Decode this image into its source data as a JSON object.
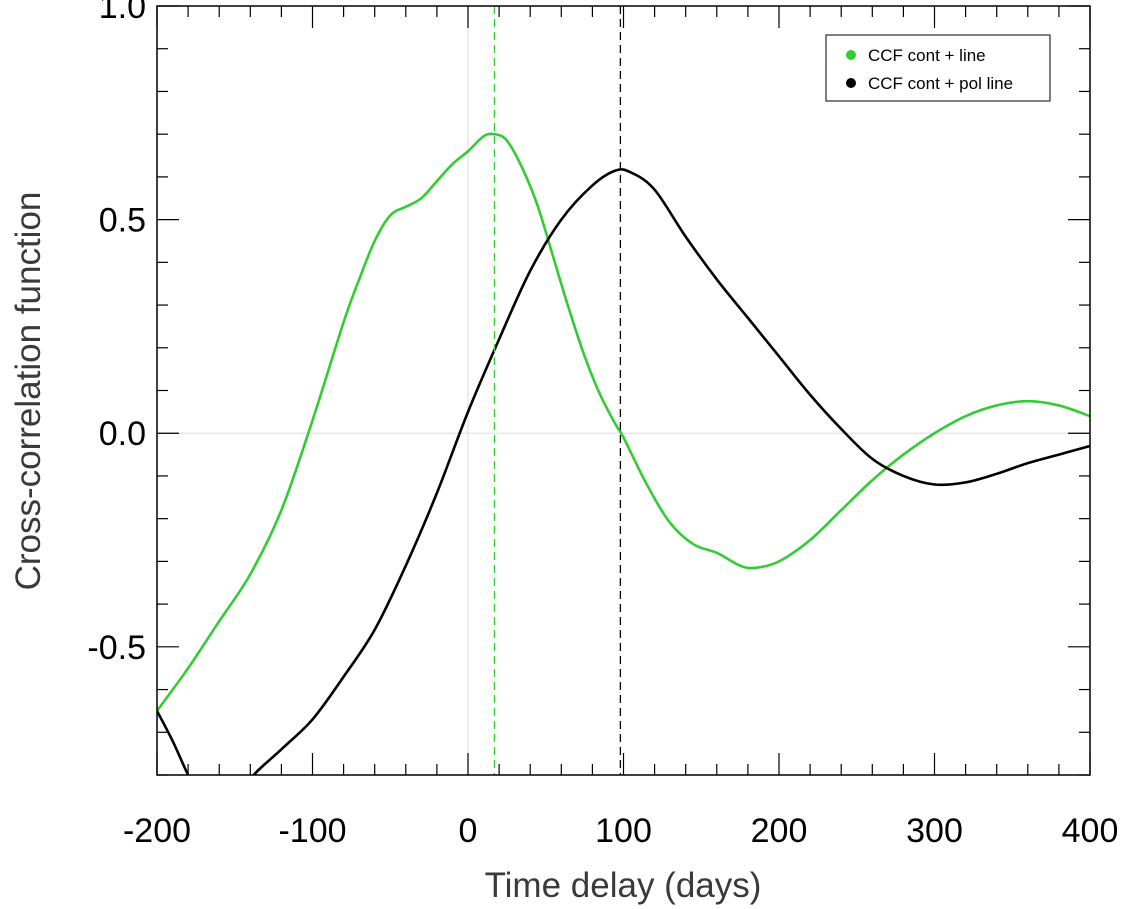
{
  "chart_data": {
    "type": "line",
    "xlabel": "Time delay (days)",
    "ylabel": "Cross-correlation function",
    "xlim": [
      -200,
      400
    ],
    "ylim": [
      -0.8,
      1.0
    ],
    "x_ticks": [
      -200,
      -100,
      0,
      100,
      200,
      300,
      400
    ],
    "y_ticks": [
      -0.5,
      0.0,
      0.5,
      1.0
    ],
    "x_tick_labels": [
      "-200",
      "-100",
      "0",
      "100",
      "200",
      "300",
      "400"
    ],
    "y_tick_labels": [
      "-0.5",
      "0.0",
      "0.5",
      "1.0"
    ],
    "grid": false,
    "reference_lines": {
      "x": 0,
      "y": 0,
      "color": "#e3e3e3"
    },
    "legend": {
      "position": "top-right"
    },
    "series": [
      {
        "name": "CCF cont + line",
        "color": "#33cc33",
        "peak_x": 17,
        "points": [
          [
            -200,
            -0.65
          ],
          [
            -180,
            -0.55
          ],
          [
            -160,
            -0.44
          ],
          [
            -140,
            -0.33
          ],
          [
            -120,
            -0.18
          ],
          [
            -100,
            0.03
          ],
          [
            -80,
            0.26
          ],
          [
            -70,
            0.36
          ],
          [
            -60,
            0.45
          ],
          [
            -50,
            0.51
          ],
          [
            -40,
            0.53
          ],
          [
            -30,
            0.55
          ],
          [
            -20,
            0.59
          ],
          [
            -10,
            0.63
          ],
          [
            0,
            0.66
          ],
          [
            10,
            0.695
          ],
          [
            17,
            0.7
          ],
          [
            25,
            0.685
          ],
          [
            35,
            0.62
          ],
          [
            45,
            0.53
          ],
          [
            55,
            0.41
          ],
          [
            65,
            0.29
          ],
          [
            75,
            0.18
          ],
          [
            85,
            0.09
          ],
          [
            95,
            0.02
          ],
          [
            100,
            -0.01
          ],
          [
            115,
            -0.12
          ],
          [
            130,
            -0.21
          ],
          [
            145,
            -0.26
          ],
          [
            160,
            -0.28
          ],
          [
            175,
            -0.31
          ],
          [
            185,
            -0.315
          ],
          [
            200,
            -0.3
          ],
          [
            220,
            -0.25
          ],
          [
            240,
            -0.18
          ],
          [
            260,
            -0.11
          ],
          [
            280,
            -0.05
          ],
          [
            300,
            0.0
          ],
          [
            320,
            0.04
          ],
          [
            340,
            0.065
          ],
          [
            360,
            0.075
          ],
          [
            380,
            0.065
          ],
          [
            400,
            0.04
          ]
        ]
      },
      {
        "name": "CCF cont + pol line",
        "color": "#000000",
        "peak_x": 98,
        "points": [
          [
            -200,
            -0.65
          ],
          [
            -190,
            -0.72
          ],
          [
            -180,
            -0.8
          ],
          [
            -170,
            -0.87
          ],
          [
            -160,
            -0.9
          ],
          [
            -150,
            -0.89
          ],
          [
            -140,
            -0.81
          ],
          [
            -120,
            -0.74
          ],
          [
            -100,
            -0.67
          ],
          [
            -80,
            -0.57
          ],
          [
            -60,
            -0.46
          ],
          [
            -40,
            -0.31
          ],
          [
            -20,
            -0.14
          ],
          [
            0,
            0.05
          ],
          [
            20,
            0.22
          ],
          [
            40,
            0.38
          ],
          [
            60,
            0.5
          ],
          [
            80,
            0.58
          ],
          [
            95,
            0.615
          ],
          [
            105,
            0.61
          ],
          [
            120,
            0.57
          ],
          [
            140,
            0.46
          ],
          [
            160,
            0.36
          ],
          [
            180,
            0.27
          ],
          [
            200,
            0.18
          ],
          [
            220,
            0.09
          ],
          [
            240,
            0.01
          ],
          [
            260,
            -0.06
          ],
          [
            280,
            -0.1
          ],
          [
            300,
            -0.12
          ],
          [
            320,
            -0.115
          ],
          [
            340,
            -0.095
          ],
          [
            360,
            -0.07
          ],
          [
            380,
            -0.05
          ],
          [
            400,
            -0.03
          ]
        ]
      }
    ]
  }
}
